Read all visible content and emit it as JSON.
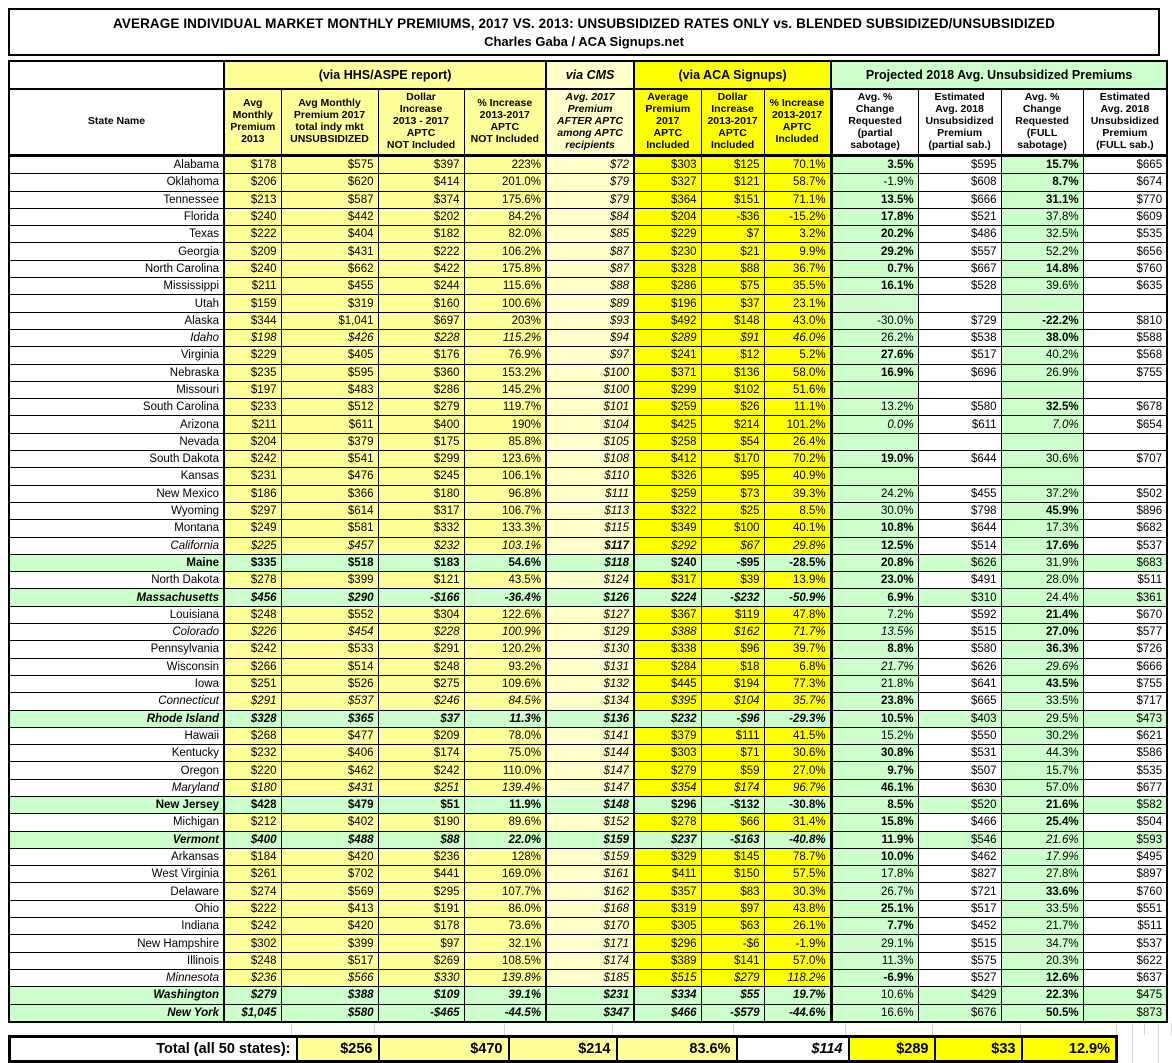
{
  "title": {
    "line1": "AVERAGE INDIVIDUAL MARKET MONTHLY PREMIUMS, 2017 VS. 2013: UNSUBSIDIZED RATES ONLY vs. BLENDED SUBSIDIZED/UNSUBSIDIZED",
    "line2": "Charles Gaba / ACA Signups.net"
  },
  "source_groups": [
    "(via HHS/ASPE report)",
    "via CMS",
    "(via ACA Signups)",
    "Projected 2018 Avg. Unsubsidized Premiums"
  ],
  "columns": [
    "State Name",
    "Avg\nMonthly\nPremium\n2013",
    "Avg Monthly\nPremium 2017\ntotal indy mkt\nUNSUBSIDIZED",
    "Dollar\nIncrease\n2013 - 2017\nAPTC\nNOT Included",
    "% Increase\n2013-2017\nAPTC\nNOT Included",
    "Avg. 2017\nPremium\nAFTER APTC\namong APTC\nrecipients",
    "Average\nPremium\n2017\nAPTC\nIncluded",
    "Dollar\nIncrease\n2013-2017\nAPTC\nIncluded",
    "% Increase\n2013-2017\nAPTC\nIncluded",
    "Avg. %\nChange\nRequested\n(partial\nsabotage)",
    "Estimated\nAvg. 2018\nUnsubsidized\nPremium\n(partial sab.)",
    "Avg. %\nChange\nRequested\n(FULL\nsabotage)",
    "Estimated\nAvg. 2018\nUnsubsidized\nPremium\n(FULL sab.)"
  ],
  "rows": [
    {
      "state": "Alabama",
      "hl": false,
      "ns": "n",
      "v": [
        "$178",
        "$575",
        "$397",
        "223%",
        "$72",
        "$303",
        "$125",
        "70.1%",
        "3.5%",
        "$595",
        "15.7%",
        "$665"
      ],
      "vb": [
        8,
        10
      ],
      "vi": []
    },
    {
      "state": "Oklahoma",
      "hl": false,
      "ns": "n",
      "v": [
        "$206",
        "$620",
        "$414",
        "201.0%",
        "$79",
        "$327",
        "$121",
        "58.7%",
        "-1.9%",
        "$608",
        "8.7%",
        "$674"
      ],
      "vb": [
        10
      ],
      "vi": []
    },
    {
      "state": "Tennessee",
      "hl": false,
      "ns": "n",
      "v": [
        "$213",
        "$587",
        "$374",
        "175.6%",
        "$79",
        "$364",
        "$151",
        "71.1%",
        "13.5%",
        "$666",
        "31.1%",
        "$770"
      ],
      "vb": [
        8,
        10
      ],
      "vi": []
    },
    {
      "state": "Florida",
      "hl": false,
      "ns": "n",
      "v": [
        "$240",
        "$442",
        "$202",
        "84.2%",
        "$84",
        "$204",
        "-$36",
        "-15.2%",
        "17.8%",
        "$521",
        "37.8%",
        "$609"
      ],
      "vb": [
        8
      ],
      "vi": []
    },
    {
      "state": "Texas",
      "hl": false,
      "ns": "n",
      "v": [
        "$222",
        "$404",
        "$182",
        "82.0%",
        "$85",
        "$229",
        "$7",
        "3.2%",
        "20.2%",
        "$486",
        "32.5%",
        "$535"
      ],
      "vb": [
        8
      ],
      "vi": []
    },
    {
      "state": "Georgia",
      "hl": false,
      "ns": "n",
      "v": [
        "$209",
        "$431",
        "$222",
        "106.2%",
        "$87",
        "$230",
        "$21",
        "9.9%",
        "29.2%",
        "$557",
        "52.2%",
        "$656"
      ],
      "vb": [
        8
      ],
      "vi": []
    },
    {
      "state": "North Carolina",
      "hl": false,
      "ns": "n",
      "v": [
        "$240",
        "$662",
        "$422",
        "175.8%",
        "$87",
        "$328",
        "$88",
        "36.7%",
        "0.7%",
        "$667",
        "14.8%",
        "$760"
      ],
      "vb": [
        8,
        10
      ],
      "vi": []
    },
    {
      "state": "Mississippi",
      "hl": false,
      "ns": "n",
      "v": [
        "$211",
        "$455",
        "$244",
        "115.6%",
        "$88",
        "$286",
        "$75",
        "35.5%",
        "16.1%",
        "$528",
        "39.6%",
        "$635"
      ],
      "vb": [
        8
      ],
      "vi": []
    },
    {
      "state": "Utah",
      "hl": false,
      "ns": "n",
      "v": [
        "$159",
        "$319",
        "$160",
        "100.6%",
        "$89",
        "$196",
        "$37",
        "23.1%",
        "",
        "",
        "",
        ""
      ],
      "vb": [],
      "vi": []
    },
    {
      "state": "Alaska",
      "hl": false,
      "ns": "n",
      "v": [
        "$344",
        "$1,041",
        "$697",
        "203%",
        "$93",
        "$492",
        "$148",
        "43.0%",
        "-30.0%",
        "$729",
        "-22.2%",
        "$810"
      ],
      "vb": [
        10
      ],
      "vi": []
    },
    {
      "state": "Idaho",
      "hl": false,
      "ns": "i",
      "v": [
        "$198",
        "$426",
        "$228",
        "115.2%",
        "$94",
        "$289",
        "$91",
        "46.0%",
        "26.2%",
        "$538",
        "38.0%",
        "$588"
      ],
      "vb": [
        10
      ],
      "vi": []
    },
    {
      "state": "Virginia",
      "hl": false,
      "ns": "n",
      "v": [
        "$229",
        "$405",
        "$176",
        "76.9%",
        "$97",
        "$241",
        "$12",
        "5.2%",
        "27.6%",
        "$517",
        "40.2%",
        "$568"
      ],
      "vb": [
        8
      ],
      "vi": []
    },
    {
      "state": "Nebraska",
      "hl": false,
      "ns": "n",
      "v": [
        "$235",
        "$595",
        "$360",
        "153.2%",
        "$100",
        "$371",
        "$136",
        "58.0%",
        "16.9%",
        "$696",
        "26.9%",
        "$755"
      ],
      "vb": [
        8
      ],
      "vi": []
    },
    {
      "state": "Missouri",
      "hl": false,
      "ns": "n",
      "v": [
        "$197",
        "$483",
        "$286",
        "145.2%",
        "$100",
        "$299",
        "$102",
        "51.6%",
        "",
        "",
        "",
        ""
      ],
      "vb": [],
      "vi": []
    },
    {
      "state": "South Carolina",
      "hl": false,
      "ns": "n",
      "v": [
        "$233",
        "$512",
        "$279",
        "119.7%",
        "$101",
        "$259",
        "$26",
        "11.1%",
        "13.2%",
        "$580",
        "32.5%",
        "$678"
      ],
      "vb": [
        10
      ],
      "vi": []
    },
    {
      "state": "Arizona",
      "hl": false,
      "ns": "n",
      "v": [
        "$211",
        "$611",
        "$400",
        "190%",
        "$104",
        "$425",
        "$214",
        "101.2%",
        "0.0%",
        "$611",
        "7.0%",
        "$654"
      ],
      "vb": [],
      "vi": [
        8,
        10
      ]
    },
    {
      "state": "Nevada",
      "hl": false,
      "ns": "n",
      "v": [
        "$204",
        "$379",
        "$175",
        "85.8%",
        "$105",
        "$258",
        "$54",
        "26.4%",
        "",
        "",
        "",
        ""
      ],
      "vb": [],
      "vi": []
    },
    {
      "state": "South Dakota",
      "hl": false,
      "ns": "n",
      "v": [
        "$242",
        "$541",
        "$299",
        "123.6%",
        "$108",
        "$412",
        "$170",
        "70.2%",
        "19.0%",
        "$644",
        "30.6%",
        "$707"
      ],
      "vb": [
        8
      ],
      "vi": []
    },
    {
      "state": "Kansas",
      "hl": false,
      "ns": "n",
      "v": [
        "$231",
        "$476",
        "$245",
        "106.1%",
        "$110",
        "$326",
        "$95",
        "40.9%",
        "",
        "",
        "",
        ""
      ],
      "vb": [],
      "vi": []
    },
    {
      "state": "New Mexico",
      "hl": false,
      "ns": "n",
      "v": [
        "$186",
        "$366",
        "$180",
        "96.8%",
        "$111",
        "$259",
        "$73",
        "39.3%",
        "24.2%",
        "$455",
        "37.2%",
        "$502"
      ],
      "vb": [],
      "vi": []
    },
    {
      "state": "Wyoming",
      "hl": false,
      "ns": "n",
      "v": [
        "$297",
        "$614",
        "$317",
        "106.7%",
        "$113",
        "$322",
        "$25",
        "8.5%",
        "30.0%",
        "$798",
        "45.9%",
        "$896"
      ],
      "vb": [
        10
      ],
      "vi": []
    },
    {
      "state": "Montana",
      "hl": false,
      "ns": "n",
      "v": [
        "$249",
        "$581",
        "$332",
        "133.3%",
        "$115",
        "$349",
        "$100",
        "40.1%",
        "10.8%",
        "$644",
        "17.3%",
        "$682"
      ],
      "vb": [
        8
      ],
      "vi": []
    },
    {
      "state": "California",
      "hl": false,
      "ns": "i",
      "v": [
        "$225",
        "$457",
        "$232",
        "103.1%",
        "$117",
        "$292",
        "$67",
        "29.8%",
        "12.5%",
        "$514",
        "17.6%",
        "$537"
      ],
      "vb": [
        4,
        8,
        10
      ],
      "vi": []
    },
    {
      "state": "Maine",
      "hl": true,
      "ns": "b",
      "v": [
        "$335",
        "$518",
        "$183",
        "54.6%",
        "$118",
        "$240",
        "-$95",
        "-28.5%",
        "20.8%",
        "$626",
        "31.9%",
        "$683"
      ],
      "vb": [
        8
      ],
      "vi": []
    },
    {
      "state": "North Dakota",
      "hl": false,
      "ns": "n",
      "v": [
        "$278",
        "$399",
        "$121",
        "43.5%",
        "$124",
        "$317",
        "$39",
        "13.9%",
        "23.0%",
        "$491",
        "28.0%",
        "$511"
      ],
      "vb": [
        8
      ],
      "vi": []
    },
    {
      "state": "Massachusetts",
      "hl": true,
      "ns": "bi",
      "v": [
        "$456",
        "$290",
        "-$166",
        "-36.4%",
        "$126",
        "$224",
        "-$232",
        "-50.9%",
        "6.9%",
        "$310",
        "24.4%",
        "$361"
      ],
      "vb": [
        8
      ],
      "vi": []
    },
    {
      "state": "Louisiana",
      "hl": false,
      "ns": "n",
      "v": [
        "$248",
        "$552",
        "$304",
        "122.6%",
        "$127",
        "$367",
        "$119",
        "47.8%",
        "7.2%",
        "$592",
        "21.4%",
        "$670"
      ],
      "vb": [
        10
      ],
      "vi": []
    },
    {
      "state": "Colorado",
      "hl": false,
      "ns": "i",
      "v": [
        "$226",
        "$454",
        "$228",
        "100.9%",
        "$129",
        "$388",
        "$162",
        "71.7%",
        "13.5%",
        "$515",
        "27.0%",
        "$577"
      ],
      "vb": [
        10
      ],
      "vi": [
        8
      ]
    },
    {
      "state": "Pennsylvania",
      "hl": false,
      "ns": "n",
      "v": [
        "$242",
        "$533",
        "$291",
        "120.2%",
        "$130",
        "$338",
        "$96",
        "39.7%",
        "8.8%",
        "$580",
        "36.3%",
        "$726"
      ],
      "vb": [
        8,
        10
      ],
      "vi": []
    },
    {
      "state": "Wisconsin",
      "hl": false,
      "ns": "n",
      "v": [
        "$266",
        "$514",
        "$248",
        "93.2%",
        "$131",
        "$284",
        "$18",
        "6.8%",
        "21.7%",
        "$626",
        "29.6%",
        "$666"
      ],
      "vb": [],
      "vi": [
        8,
        10
      ]
    },
    {
      "state": "Iowa",
      "hl": false,
      "ns": "n",
      "v": [
        "$251",
        "$526",
        "$275",
        "109.6%",
        "$132",
        "$445",
        "$194",
        "77.3%",
        "21.8%",
        "$641",
        "43.5%",
        "$755"
      ],
      "vb": [
        10
      ],
      "vi": []
    },
    {
      "state": "Connecticut",
      "hl": false,
      "ns": "i",
      "v": [
        "$291",
        "$537",
        "$246",
        "84.5%",
        "$134",
        "$395",
        "$104",
        "35.7%",
        "23.8%",
        "$665",
        "33.5%",
        "$717"
      ],
      "vb": [
        8
      ],
      "vi": []
    },
    {
      "state": "Rhode Island",
      "hl": true,
      "ns": "bi",
      "v": [
        "$328",
        "$365",
        "$37",
        "11.3%",
        "$136",
        "$232",
        "-$96",
        "-29.3%",
        "10.5%",
        "$403",
        "29.5%",
        "$473"
      ],
      "vb": [
        8
      ],
      "vi": []
    },
    {
      "state": "Hawaii",
      "hl": false,
      "ns": "n",
      "v": [
        "$268",
        "$477",
        "$209",
        "78.0%",
        "$141",
        "$379",
        "$111",
        "41.5%",
        "15.2%",
        "$550",
        "30.2%",
        "$621"
      ],
      "vb": [],
      "vi": []
    },
    {
      "state": "Kentucky",
      "hl": false,
      "ns": "n",
      "v": [
        "$232",
        "$406",
        "$174",
        "75.0%",
        "$144",
        "$303",
        "$71",
        "30.6%",
        "30.8%",
        "$531",
        "44.3%",
        "$586"
      ],
      "vb": [
        8
      ],
      "vi": []
    },
    {
      "state": "Oregon",
      "hl": false,
      "ns": "n",
      "v": [
        "$220",
        "$462",
        "$242",
        "110.0%",
        "$147",
        "$279",
        "$59",
        "27.0%",
        "9.7%",
        "$507",
        "15.7%",
        "$535"
      ],
      "vb": [
        8
      ],
      "vi": []
    },
    {
      "state": "Maryland",
      "hl": false,
      "ns": "i",
      "v": [
        "$180",
        "$431",
        "$251",
        "139.4%",
        "$147",
        "$354",
        "$174",
        "96.7%",
        "46.1%",
        "$630",
        "57.0%",
        "$677"
      ],
      "vb": [
        8
      ],
      "vi": []
    },
    {
      "state": "New Jersey",
      "hl": true,
      "ns": "b",
      "v": [
        "$428",
        "$479",
        "$51",
        "11.9%",
        "$148",
        "$296",
        "-$132",
        "-30.8%",
        "8.5%",
        "$520",
        "21.6%",
        "$582"
      ],
      "vb": [
        8,
        10
      ],
      "vi": []
    },
    {
      "state": "Michigan",
      "hl": false,
      "ns": "n",
      "v": [
        "$212",
        "$402",
        "$190",
        "89.6%",
        "$152",
        "$278",
        "$66",
        "31.4%",
        "15.8%",
        "$466",
        "25.4%",
        "$504"
      ],
      "vb": [
        8,
        10
      ],
      "vi": []
    },
    {
      "state": "Vermont",
      "hl": true,
      "ns": "bi",
      "v": [
        "$400",
        "$488",
        "$88",
        "22.0%",
        "$159",
        "$237",
        "-$163",
        "-40.8%",
        "11.9%",
        "$546",
        "21.6%",
        "$593"
      ],
      "vb": [
        8
      ],
      "vi": [
        10
      ]
    },
    {
      "state": "Arkansas",
      "hl": false,
      "ns": "n",
      "v": [
        "$184",
        "$420",
        "$236",
        "128%",
        "$159",
        "$329",
        "$145",
        "78.7%",
        "10.0%",
        "$462",
        "17.9%",
        "$495"
      ],
      "vb": [
        8
      ],
      "vi": [
        10
      ]
    },
    {
      "state": "West Virginia",
      "hl": false,
      "ns": "n",
      "v": [
        "$261",
        "$702",
        "$441",
        "169.0%",
        "$161",
        "$411",
        "$150",
        "57.5%",
        "17.8%",
        "$827",
        "27.8%",
        "$897"
      ],
      "vb": [],
      "vi": []
    },
    {
      "state": "Delaware",
      "hl": false,
      "ns": "n",
      "v": [
        "$274",
        "$569",
        "$295",
        "107.7%",
        "$162",
        "$357",
        "$83",
        "30.3%",
        "26.7%",
        "$721",
        "33.6%",
        "$760"
      ],
      "vb": [
        10
      ],
      "vi": []
    },
    {
      "state": "Ohio",
      "hl": false,
      "ns": "n",
      "v": [
        "$222",
        "$413",
        "$191",
        "86.0%",
        "$168",
        "$319",
        "$97",
        "43.8%",
        "25.1%",
        "$517",
        "33.5%",
        "$551"
      ],
      "vb": [
        8
      ],
      "vi": []
    },
    {
      "state": "Indiana",
      "hl": false,
      "ns": "n",
      "v": [
        "$242",
        "$420",
        "$178",
        "73.6%",
        "$170",
        "$305",
        "$63",
        "26.1%",
        "7.7%",
        "$452",
        "21.7%",
        "$511"
      ],
      "vb": [
        8
      ],
      "vi": []
    },
    {
      "state": "New Hampshire",
      "hl": false,
      "ns": "n",
      "v": [
        "$302",
        "$399",
        "$97",
        "32.1%",
        "$171",
        "$296",
        "-$6",
        "-1.9%",
        "29.1%",
        "$515",
        "34.7%",
        "$537"
      ],
      "vb": [],
      "vi": []
    },
    {
      "state": "Illinois",
      "hl": false,
      "ns": "n",
      "v": [
        "$248",
        "$517",
        "$269",
        "108.5%",
        "$174",
        "$389",
        "$141",
        "57.0%",
        "11.3%",
        "$575",
        "20.3%",
        "$622"
      ],
      "vb": [],
      "vi": []
    },
    {
      "state": "Minnesota",
      "hl": false,
      "ns": "i",
      "v": [
        "$236",
        "$566",
        "$330",
        "139.8%",
        "$185",
        "$515",
        "$279",
        "118.2%",
        "-6.9%",
        "$527",
        "12.6%",
        "$637"
      ],
      "vb": [
        8,
        10
      ],
      "vi": []
    },
    {
      "state": "Washington",
      "hl": true,
      "ns": "bi",
      "v": [
        "$279",
        "$388",
        "$109",
        "39.1%",
        "$231",
        "$334",
        "$55",
        "19.7%",
        "10.6%",
        "$429",
        "22.3%",
        "$475"
      ],
      "vb": [
        10
      ],
      "vi": []
    },
    {
      "state": "New York",
      "hl": true,
      "ns": "bi",
      "v": [
        "$1,045",
        "$580",
        "-$465",
        "-44.5%",
        "$347",
        "$466",
        "-$579",
        "-44.6%",
        "16.6%",
        "$676",
        "50.5%",
        "$873"
      ],
      "vb": [
        10
      ],
      "vi": []
    }
  ],
  "total": {
    "label": "Total (all 50 states):",
    "v": [
      "$256",
      "$470",
      "$214",
      "83.6%",
      "$114",
      "$289",
      "$33",
      "12.9%"
    ]
  },
  "colors": {
    "pale_yellow": "#FFFF99",
    "cms_yellow": "#FFFFCC",
    "bright_yellow": "#FFFF00",
    "light_green": "#CCFFCC",
    "border_black": "#000000",
    "faint_grid": "#D8D8D8"
  }
}
